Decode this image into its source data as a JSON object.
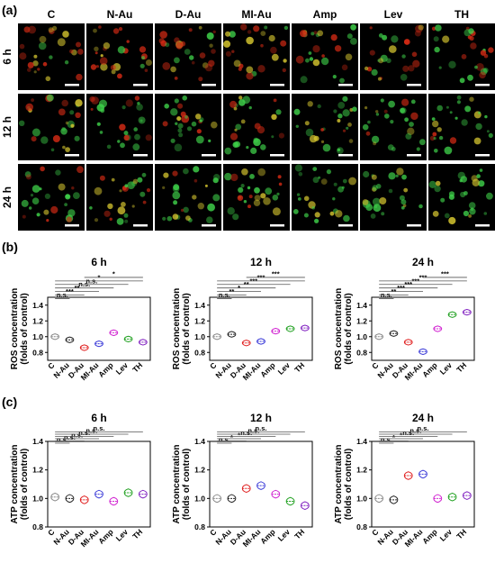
{
  "panel_labels": [
    "(a)",
    "(b)",
    "(c)"
  ],
  "micrograph": {
    "conditions": [
      "C",
      "N-Au",
      "D-Au",
      "MI-Au",
      "Amp",
      "Lev",
      "TH"
    ],
    "times": [
      "6 h",
      "12 h",
      "24 h"
    ],
    "stains": [
      "red-mitochondria-staining",
      "green-depolarized-staining"
    ],
    "colors": {
      "red": "#d22a14",
      "green": "#3fd24a",
      "yellow": "#d8c830",
      "background": "#000000",
      "scalebar": "#ffffff"
    }
  },
  "chart_data": [
    {
      "type": "violin",
      "panel": "b",
      "title": "6 h",
      "ylabel": "ROS concentration\n(folds of control)",
      "categories": [
        "C",
        "N-Au",
        "D-Au",
        "MI-Au",
        "Amp",
        "Lev",
        "TH"
      ],
      "ylim": [
        0.7,
        1.5
      ],
      "yticks": [
        "0.8",
        "1.0",
        "1.2",
        "1.4"
      ],
      "series": [
        {
          "values": [
            1.0,
            0.96,
            0.86,
            0.91,
            1.05,
            0.97,
            0.93
          ]
        }
      ],
      "colors": [
        "#888888",
        "#222222",
        "#e02020",
        "#3a3ad8",
        "#d020d0",
        "#20a020",
        "#8020c0"
      ],
      "significance": [
        {
          "from": 0,
          "to": 1,
          "label": "n.s."
        },
        {
          "from": 0,
          "to": 2,
          "label": "***"
        },
        {
          "from": 0,
          "to": 3,
          "label": "**"
        },
        {
          "from": 0,
          "to": 4,
          "label": "n.s."
        },
        {
          "from": 0,
          "to": 5,
          "label": "n.s."
        },
        {
          "from": 0,
          "to": 6,
          "label": "*"
        },
        {
          "from": 2,
          "to": 6,
          "label": "*"
        }
      ]
    },
    {
      "type": "violin",
      "panel": "b",
      "title": "12 h",
      "ylabel": "ROS concentration\n(folds of control)",
      "categories": [
        "C",
        "N-Au",
        "D-Au",
        "MI-Au",
        "Amp",
        "Lev",
        "TH"
      ],
      "ylim": [
        0.7,
        1.5
      ],
      "yticks": [
        "0.8",
        "1.0",
        "1.2",
        "1.4"
      ],
      "series": [
        {
          "values": [
            1.0,
            1.03,
            0.92,
            0.94,
            1.07,
            1.1,
            1.11
          ]
        }
      ],
      "colors": [
        "#888888",
        "#222222",
        "#e02020",
        "#3a3ad8",
        "#d020d0",
        "#20a020",
        "#8020c0"
      ],
      "significance": [
        {
          "from": 0,
          "to": 1,
          "label": "n.s."
        },
        {
          "from": 0,
          "to": 2,
          "label": "**"
        },
        {
          "from": 0,
          "to": 3,
          "label": "*"
        },
        {
          "from": 0,
          "to": 4,
          "label": "**"
        },
        {
          "from": 0,
          "to": 5,
          "label": "***"
        },
        {
          "from": 0,
          "to": 6,
          "label": "***"
        },
        {
          "from": 2,
          "to": 6,
          "label": "***"
        }
      ]
    },
    {
      "type": "violin",
      "panel": "b",
      "title": "24 h",
      "ylabel": "ROS concentration\n(folds of control)",
      "categories": [
        "C",
        "N-Au",
        "D-Au",
        "MI-Au",
        "Amp",
        "Lev",
        "TH"
      ],
      "ylim": [
        0.7,
        1.5
      ],
      "yticks": [
        "0.8",
        "1.0",
        "1.2",
        "1.4"
      ],
      "series": [
        {
          "values": [
            1.0,
            1.04,
            0.93,
            0.81,
            1.1,
            1.28,
            1.31
          ]
        }
      ],
      "colors": [
        "#888888",
        "#222222",
        "#e02020",
        "#3a3ad8",
        "#d020d0",
        "#20a020",
        "#8020c0"
      ],
      "significance": [
        {
          "from": 0,
          "to": 1,
          "label": "n.s."
        },
        {
          "from": 0,
          "to": 2,
          "label": "**"
        },
        {
          "from": 0,
          "to": 3,
          "label": "***"
        },
        {
          "from": 0,
          "to": 4,
          "label": "***"
        },
        {
          "from": 0,
          "to": 5,
          "label": "***"
        },
        {
          "from": 0,
          "to": 6,
          "label": "***"
        },
        {
          "from": 3,
          "to": 6,
          "label": "***"
        }
      ]
    },
    {
      "type": "violin",
      "panel": "c",
      "title": "6 h",
      "ylabel": "ATP concentration\n(folds of control)",
      "categories": [
        "C",
        "N-Au",
        "D-Au",
        "MI-Au",
        "Amp",
        "Lev",
        "TH"
      ],
      "ylim": [
        0.8,
        1.4
      ],
      "yticks": [
        "0.8",
        "1.0",
        "1.2",
        "1.4"
      ],
      "series": [
        {
          "values": [
            1.01,
            1.0,
            0.99,
            1.03,
            0.98,
            1.04,
            1.03
          ]
        }
      ],
      "colors": [
        "#888888",
        "#222222",
        "#e02020",
        "#3a3ad8",
        "#d020d0",
        "#20a020",
        "#8020c0"
      ],
      "significance": [
        {
          "from": 0,
          "to": 1,
          "label": "n.s."
        },
        {
          "from": 0,
          "to": 2,
          "label": "n.s."
        },
        {
          "from": 0,
          "to": 3,
          "label": "n.s."
        },
        {
          "from": 0,
          "to": 4,
          "label": "n.s."
        },
        {
          "from": 0,
          "to": 5,
          "label": "n.s."
        },
        {
          "from": 0,
          "to": 6,
          "label": "n.s."
        }
      ]
    },
    {
      "type": "violin",
      "panel": "c",
      "title": "12 h",
      "ylabel": "ATP concentration\n(folds of control)",
      "categories": [
        "C",
        "N-Au",
        "D-Au",
        "MI-Au",
        "Amp",
        "Lev",
        "TH"
      ],
      "ylim": [
        0.8,
        1.4
      ],
      "yticks": [
        "0.8",
        "1.0",
        "1.2",
        "1.4"
      ],
      "series": [
        {
          "values": [
            1.0,
            1.0,
            1.07,
            1.09,
            1.03,
            0.98,
            0.95
          ]
        }
      ],
      "colors": [
        "#888888",
        "#222222",
        "#e02020",
        "#3a3ad8",
        "#d020d0",
        "#20a020",
        "#8020c0"
      ],
      "significance": [
        {
          "from": 0,
          "to": 1,
          "label": "n.s."
        },
        {
          "from": 0,
          "to": 2,
          "label": "*"
        },
        {
          "from": 0,
          "to": 3,
          "label": "*"
        },
        {
          "from": 0,
          "to": 4,
          "label": "n.s."
        },
        {
          "from": 0,
          "to": 5,
          "label": "n.s."
        },
        {
          "from": 0,
          "to": 6,
          "label": "n.s."
        }
      ]
    },
    {
      "type": "violin",
      "panel": "c",
      "title": "24 h",
      "ylabel": "ATP concentration\n(folds of control)",
      "categories": [
        "C",
        "N-Au",
        "D-Au",
        "MI-Au",
        "Amp",
        "Lev",
        "TH"
      ],
      "ylim": [
        0.8,
        1.4
      ],
      "yticks": [
        "0.8",
        "1.0",
        "1.2",
        "1.4"
      ],
      "series": [
        {
          "values": [
            1.0,
            0.99,
            1.16,
            1.17,
            1.0,
            1.01,
            1.02
          ]
        }
      ],
      "colors": [
        "#888888",
        "#222222",
        "#e02020",
        "#3a3ad8",
        "#d020d0",
        "#20a020",
        "#8020c0"
      ],
      "significance": [
        {
          "from": 0,
          "to": 1,
          "label": "n.s."
        },
        {
          "from": 0,
          "to": 2,
          "label": "*"
        },
        {
          "from": 0,
          "to": 3,
          "label": "*"
        },
        {
          "from": 0,
          "to": 4,
          "label": "n.s."
        },
        {
          "from": 0,
          "to": 5,
          "label": "n.s."
        },
        {
          "from": 0,
          "to": 6,
          "label": "n.s."
        }
      ]
    }
  ]
}
